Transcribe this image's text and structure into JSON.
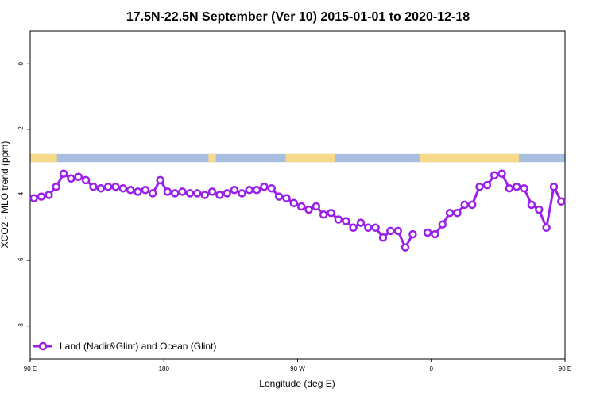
{
  "chart_data": {
    "type": "line",
    "title": "17.5N-22.5N September (Ver 10)   2015-01-01 to 2020-12-18",
    "xlabel": "Longitude (deg E)",
    "ylabel": "XCO2 - MLO trend (ppm)",
    "xlim": [
      90,
      450
    ],
    "ylim": [
      -9,
      1
    ],
    "x_ticks": [
      {
        "value": 90,
        "label": "90 E"
      },
      {
        "value": 180,
        "label": "180"
      },
      {
        "value": 270,
        "label": "90 W"
      },
      {
        "value": 360,
        "label": "0"
      },
      {
        "value": 450,
        "label": "90 E"
      },
      {
        "value": 540,
        "label": "180"
      }
    ],
    "y_ticks": [
      {
        "value": 0,
        "label": "0"
      },
      {
        "value": -2,
        "label": "-2"
      },
      {
        "value": -4,
        "label": "-4"
      },
      {
        "value": -6,
        "label": "-6"
      },
      {
        "value": -8,
        "label": "-8"
      }
    ],
    "grid": false,
    "legend_position": "bottom-left",
    "land_ocean_strip": {
      "y_range": [
        -3.0,
        -2.75
      ],
      "ocean_color": "#a9bfe0",
      "land_color": "#f7d98c",
      "land_spans": [
        [
          90,
          108
        ],
        [
          210,
          215
        ],
        [
          262,
          295
        ],
        [
          352,
          419
        ],
        [
          478,
          490
        ],
        [
          498,
          508
        ],
        [
          522,
          542
        ]
      ]
    },
    "series": [
      {
        "name": "Land (Nadir&Glint) and Ocean (Glint)",
        "color": "#9a1fe8",
        "segments": [
          {
            "x": [
              92.5,
              97.5,
              102.5,
              107.5,
              112.5,
              117.5,
              122.5,
              127.5,
              132.5,
              137.5,
              142.5,
              147.5,
              152.5,
              157.5,
              162.5,
              167.5,
              172.5,
              177.5,
              182.5,
              187.5,
              192.5,
              197.5,
              202.5,
              207.5,
              212.5,
              217.5,
              222.5,
              227.5,
              232.5,
              237.5,
              242.5,
              247.5,
              252.5,
              257.5,
              262.5,
              267.5,
              272.5,
              277.5,
              282.5,
              287.5,
              292.5,
              297.5,
              302.5,
              307.5,
              312.5,
              317.5,
              322.5,
              327.5,
              332.5,
              337.5,
              342.5,
              347.5
            ],
            "y": [
              -4.1,
              -4.05,
              -4.0,
              -3.75,
              -3.35,
              -3.5,
              -3.45,
              -3.55,
              -3.75,
              -3.8,
              -3.75,
              -3.75,
              -3.8,
              -3.85,
              -3.9,
              -3.85,
              -3.95,
              -3.55,
              -3.9,
              -3.95,
              -3.9,
              -3.95,
              -3.95,
              -4.0,
              -3.9,
              -4.0,
              -3.95,
              -3.85,
              -3.95,
              -3.85,
              -3.85,
              -3.75,
              -3.8,
              -4.05,
              -4.1,
              -4.25,
              -4.35,
              -4.45,
              -4.35,
              -4.6,
              -4.55,
              -4.75,
              -4.8,
              -5.0,
              -4.85,
              -5.0,
              -5.0,
              -5.3,
              -5.1,
              -5.1,
              -5.6,
              -5.2
            ]
          },
          {
            "x": [
              357.5,
              362.5,
              367.5,
              372.5,
              377.5,
              382.5,
              387.5,
              392.5,
              397.5,
              402.5,
              407.5,
              412.5,
              417.5,
              422.5,
              427.5,
              432.5,
              437.5,
              442.5,
              447.5,
              452.5,
              457.5,
              462.5,
              467.5,
              472.5,
              477.5,
              482.5,
              487.5,
              492.5,
              497.5,
              502.5,
              507.5,
              512.5,
              517.5,
              522.5,
              527.5,
              532.5,
              537.5,
              542.5
            ],
            "y": [
              -5.15,
              -5.2,
              -4.9,
              -4.55,
              -4.55,
              -4.3,
              -4.3,
              -3.75,
              -3.7,
              -3.4,
              -3.35,
              -3.8,
              -3.75,
              -3.8,
              -4.3,
              -4.45,
              -5.0,
              -3.75,
              -4.2,
              -4.1,
              -4.05,
              -4.05,
              -3.7,
              -3.35,
              -3.45,
              -3.4,
              -3.55,
              -3.75,
              -3.8,
              -3.75,
              -3.75,
              -3.8,
              -3.85,
              -3.9,
              -3.85,
              -3.95,
              -3.55,
              -3.5
            ]
          }
        ]
      }
    ]
  }
}
